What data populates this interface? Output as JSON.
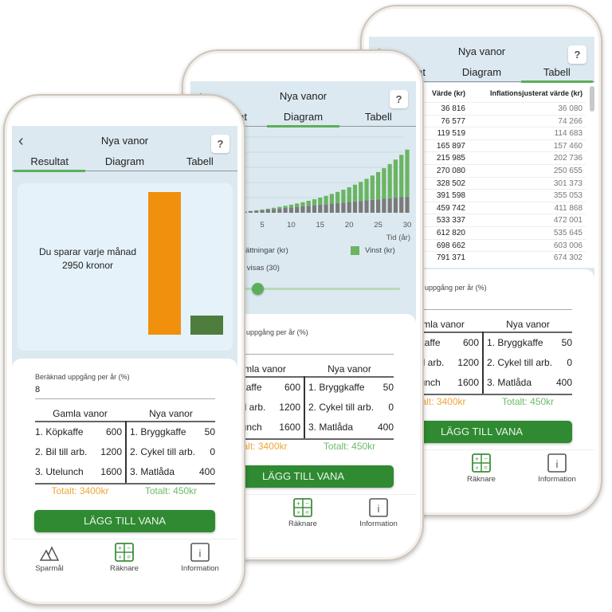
{
  "app": {
    "title": "Nya vanor",
    "help_label": "?",
    "back_icon": "chevron-left-icon"
  },
  "tabs": [
    "Resultat",
    "Diagram",
    "Tabell"
  ],
  "screens": [
    {
      "view": "Tabell",
      "active_tab": 2
    },
    {
      "view": "Diagram",
      "active_tab": 1
    },
    {
      "view": "Resultat",
      "active_tab": 0
    }
  ],
  "result": {
    "text": "Du sparar varje månad 2950 kronor",
    "bars": [
      {
        "value": 3400,
        "color": "#f0900c"
      },
      {
        "value": 450,
        "color": "#4e7d3e"
      }
    ]
  },
  "growth": {
    "label": "Beräknad uppgång per år (%)",
    "value": "8"
  },
  "habits": {
    "old_header": "Gamla vanor",
    "new_header": "Nya vanor",
    "old": [
      {
        "name": "1. Köpkaffe",
        "cost": "600"
      },
      {
        "name": "2. Bil till arb.",
        "cost": "1200"
      },
      {
        "name": "3. Utelunch",
        "cost": "1600"
      }
    ],
    "new": [
      {
        "name": "1. Bryggkaffe",
        "cost": "50"
      },
      {
        "name": "2. Cykel till arb.",
        "cost": "0"
      },
      {
        "name": "3. Matlåda",
        "cost": "400"
      }
    ],
    "old_total": "Totalt: 3400kr",
    "new_total": "Totalt: 450kr",
    "old_color": "#f0a53a",
    "new_color": "#6dbb6a"
  },
  "add_button": "LÄGG TILL VANA",
  "nav": [
    {
      "label": "Sparmål",
      "icon": "mountains-icon"
    },
    {
      "label": "Räknare",
      "icon": "calculator-icon"
    },
    {
      "label": "Information",
      "icon": "info-icon"
    }
  ],
  "chart_data": {
    "type": "bar",
    "stacked": true,
    "x": [
      1,
      2,
      3,
      4,
      5,
      6,
      7,
      8,
      9,
      10,
      11,
      12,
      13,
      14,
      15,
      16,
      17,
      18,
      19,
      20,
      21,
      22,
      23,
      24,
      25,
      26,
      27,
      28,
      29,
      30
    ],
    "xticks": [
      5,
      10,
      15,
      20,
      25,
      30
    ],
    "xlabel": "Tid (år)",
    "ylim": [
      0,
      5000000
    ],
    "grid": true,
    "series": [
      {
        "name": "Månadsinsättningar (kr)",
        "color": "#7a7a7a",
        "values": [
          35400,
          70800,
          106200,
          141600,
          177000,
          212400,
          247800,
          283200,
          318600,
          354000,
          389400,
          424800,
          460200,
          495600,
          531000,
          566400,
          601800,
          637200,
          672600,
          708000,
          743400,
          778800,
          814200,
          849600,
          885000,
          920400,
          955800,
          991200,
          1026600,
          1062000
        ]
      },
      {
        "name": "Vinst (kr)",
        "color": "#6bb463",
        "values": [
          1416,
          5777,
          13319,
          24297,
          38985,
          57680,
          80702,
          108398,
          141142,
          179337,
          223420,
          273862,
          331171,
          395897,
          468633,
          550020,
          640750,
          741570,
          853288,
          976775,
          1112973,
          1262899,
          1427651,
          1608415,
          1806472,
          2023206,
          2260110,
          2518799,
          2801015,
          3108640
        ]
      }
    ],
    "legend": "bottom"
  },
  "slider": {
    "label": "År som visas (30)",
    "value": 30
  },
  "table": {
    "headers": [
      "Värde (kr)",
      "Inflationsjusterat värde (kr)"
    ],
    "rows": [
      [
        "36 816",
        "36 080"
      ],
      [
        "76 577",
        "74 266"
      ],
      [
        "119 519",
        "114 683"
      ],
      [
        "165 897",
        "157 460"
      ],
      [
        "215 985",
        "202 736"
      ],
      [
        "270 080",
        "250 655"
      ],
      [
        "328 502",
        "301 373"
      ],
      [
        "391 598",
        "355 053"
      ],
      [
        "459 742",
        "411 868"
      ],
      [
        "533 337",
        "472 001"
      ],
      [
        "612 820",
        "535 645"
      ],
      [
        "698 662",
        "603 006"
      ],
      [
        "791 371",
        "674 302"
      ]
    ]
  }
}
